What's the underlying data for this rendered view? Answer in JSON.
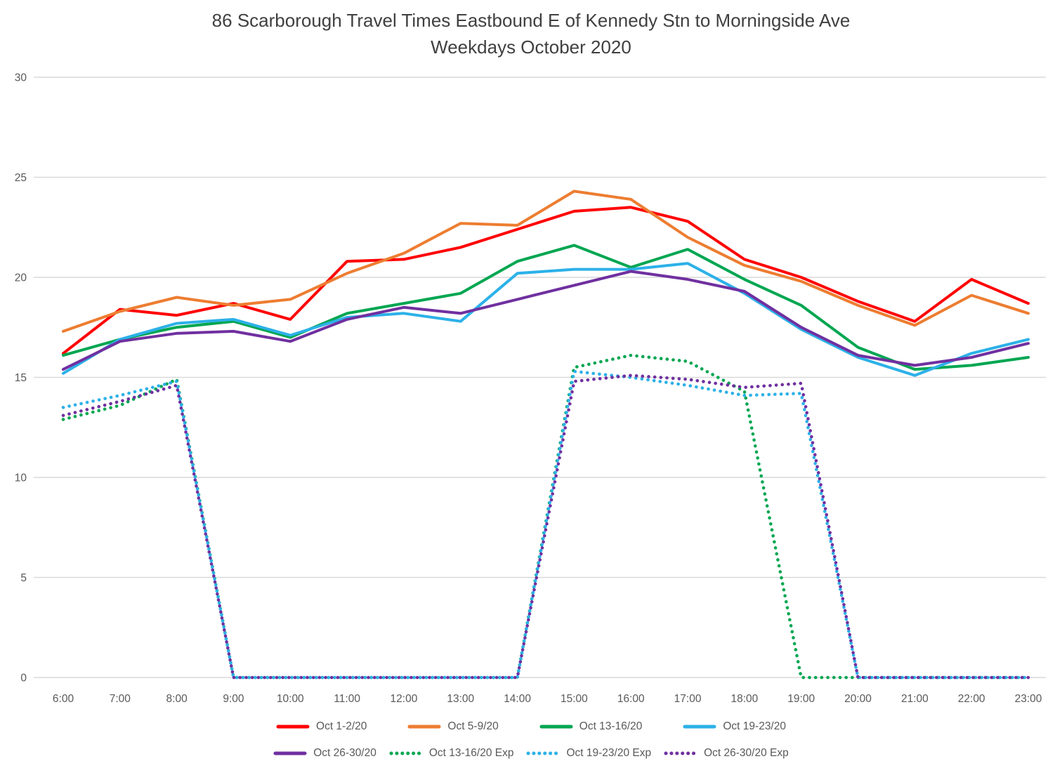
{
  "title": {
    "line1": "86 Scarborough Travel Times Eastbound E of Kennedy Stn to Morningside Ave",
    "line2": "Weekdays October 2020"
  },
  "colors": {
    "background": "#ffffff",
    "grid": "#d9d9d9",
    "axis_text": "#595959",
    "title_text": "#404040"
  },
  "chart_data": {
    "type": "line",
    "title": "86 Scarborough Travel Times Eastbound E of Kennedy Stn to Morningside Ave",
    "subtitle": "Weekdays October 2020",
    "xlabel": "",
    "ylabel": "",
    "grid": true,
    "legend_position": "bottom",
    "categories": [
      "6:00",
      "7:00",
      "8:00",
      "9:00",
      "10:00",
      "11:00",
      "12:00",
      "13:00",
      "14:00",
      "15:00",
      "16:00",
      "17:00",
      "18:00",
      "19:00",
      "20:00",
      "21:00",
      "22:00",
      "23:00"
    ],
    "y_axis": {
      "min": 0,
      "max": 30,
      "tick_interval": 5,
      "ticks": [
        0,
        5,
        10,
        15,
        20,
        25,
        30
      ]
    },
    "series": [
      {
        "name": "Oct 1-2/20",
        "color": "#ff0000",
        "style": "solid",
        "values": [
          16.2,
          18.4,
          18.1,
          18.7,
          17.9,
          20.8,
          20.9,
          21.5,
          22.4,
          23.3,
          23.5,
          22.8,
          20.9,
          20.0,
          18.8,
          17.8,
          19.9,
          18.7
        ]
      },
      {
        "name": "Oct 5-9/20",
        "color": "#ed7d31",
        "style": "solid",
        "values": [
          17.3,
          18.3,
          19.0,
          18.6,
          18.9,
          20.2,
          21.2,
          22.7,
          22.6,
          24.3,
          23.9,
          22.0,
          20.6,
          19.8,
          18.6,
          17.6,
          19.1,
          18.2
        ]
      },
      {
        "name": "Oct 13-16/20",
        "color": "#00a651",
        "style": "solid",
        "values": [
          16.1,
          16.9,
          17.5,
          17.8,
          17.0,
          18.2,
          18.7,
          19.2,
          20.8,
          21.6,
          20.5,
          21.4,
          19.9,
          18.6,
          16.5,
          15.4,
          15.6,
          16.0
        ]
      },
      {
        "name": "Oct 19-23/20",
        "color": "#2cb1e8",
        "style": "solid",
        "values": [
          15.2,
          16.9,
          17.7,
          17.9,
          17.1,
          18.0,
          18.2,
          17.8,
          20.2,
          20.4,
          20.4,
          20.7,
          19.2,
          17.4,
          16.0,
          15.1,
          16.2,
          16.9
        ]
      },
      {
        "name": "Oct 26-30/20",
        "color": "#7030a0",
        "style": "solid",
        "values": [
          15.4,
          16.8,
          17.2,
          17.3,
          16.8,
          17.9,
          18.5,
          18.2,
          18.9,
          19.6,
          20.3,
          19.9,
          19.3,
          17.5,
          16.1,
          15.6,
          16.0,
          16.7
        ]
      },
      {
        "name": "Oct 13-16/20 Exp",
        "color": "#00a651",
        "style": "dotted",
        "values": [
          12.9,
          13.6,
          14.9,
          0,
          0,
          0,
          0,
          0,
          0,
          15.5,
          16.1,
          15.8,
          14.3,
          0,
          0,
          0,
          0,
          0
        ]
      },
      {
        "name": "Oct 19-23/20 Exp",
        "color": "#2cb1e8",
        "style": "dotted",
        "values": [
          13.5,
          14.1,
          14.8,
          0,
          0,
          0,
          0,
          0,
          0,
          15.3,
          15.0,
          14.6,
          14.1,
          14.2,
          0,
          0,
          0,
          0
        ]
      },
      {
        "name": "Oct 26-30/20 Exp",
        "color": "#7030a0",
        "style": "dotted",
        "values": [
          13.1,
          13.8,
          14.6,
          0,
          0,
          0,
          0,
          0,
          0,
          14.8,
          15.1,
          14.9,
          14.5,
          14.7,
          0,
          0,
          0,
          0
        ]
      }
    ],
    "legend_rows": [
      [
        "Oct 1-2/20",
        "Oct 5-9/20",
        "Oct 13-16/20",
        "Oct 19-23/20"
      ],
      [
        "Oct 26-30/20",
        "Oct 13-16/20 Exp",
        "Oct 19-23/20 Exp",
        "Oct 26-30/20 Exp"
      ]
    ]
  }
}
